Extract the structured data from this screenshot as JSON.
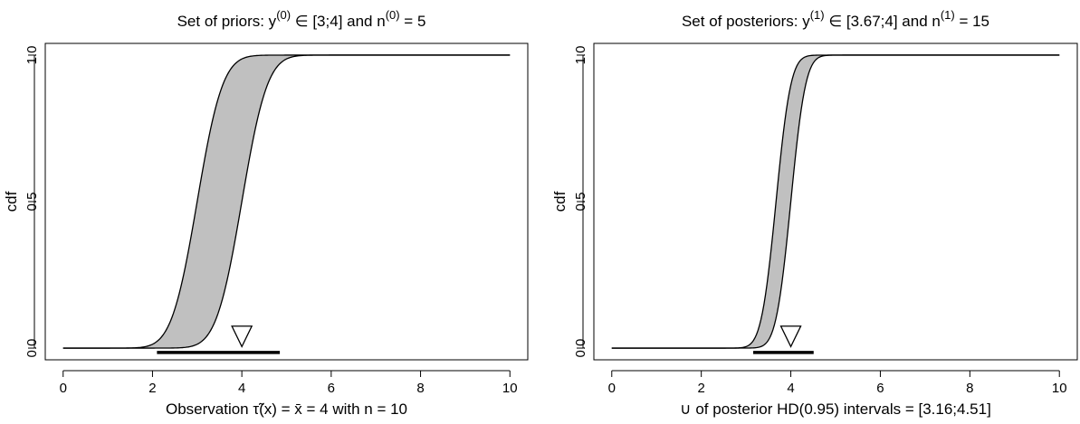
{
  "chart_data": [
    {
      "type": "area",
      "title": {
        "main": "Set of priors: y",
        "sup1": "(0)",
        "mid": " ∈  [3;4] and n",
        "sup2": "(0)",
        "tail": " = 5"
      },
      "xlabel": "Observation τ̃(x) = x̄ = 4 with n = 10",
      "ylabel": "cdf",
      "xlim": [
        0,
        10
      ],
      "ylim": [
        0,
        1
      ],
      "xticks": [
        "0",
        "2",
        "4",
        "6",
        "8",
        "10"
      ],
      "yticks": [
        "0.0",
        "0.5",
        "1.0"
      ],
      "band": {
        "fill": "#c0c0c0",
        "lower_mean": 4,
        "upper_mean": 3,
        "sd": 0.45,
        "x_from": 0,
        "x_to": 10
      },
      "interval": [
        2.1,
        4.85
      ],
      "observation_marker": 4
    },
    {
      "type": "area",
      "title": {
        "main": "Set of posteriors: y",
        "sup1": "(1)",
        "mid": " ∈  [3.67;4] and n",
        "sup2": "(1)",
        "tail": " = 15"
      },
      "xlabel": "∪ of posterior HD(0.95) intervals = [3.16;4.51]",
      "ylabel": "cdf",
      "xlim": [
        0,
        10
      ],
      "ylim": [
        0,
        1
      ],
      "xticks": [
        "0",
        "2",
        "4",
        "6",
        "8",
        "10"
      ],
      "yticks": [
        "0.0",
        "0.5",
        "1.0"
      ],
      "band": {
        "fill": "#c0c0c0",
        "lower_mean": 4,
        "upper_mean": 3.67,
        "sd": 0.26,
        "x_from": 0,
        "x_to": 10
      },
      "interval": [
        3.16,
        4.51
      ],
      "observation_marker": 4
    }
  ]
}
